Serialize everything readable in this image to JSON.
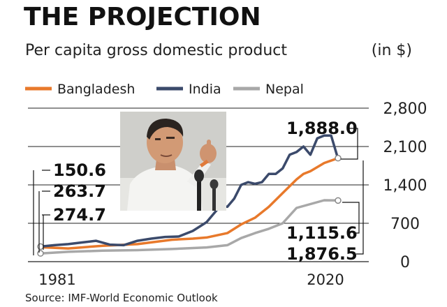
{
  "chart_data": {
    "type": "line",
    "title": "THE PROJECTION",
    "subtitle": "Per capita gross domestic product",
    "unit": "(in $)",
    "source": "Source: IMF-World Economic Outlook",
    "x_range": [
      1981,
      2024
    ],
    "x_ticks": [
      "1981",
      "2020"
    ],
    "y_ticks": [
      "2,800",
      "2,100",
      "1,400",
      "700",
      "0"
    ],
    "ylim": [
      0,
      2800
    ],
    "legend_position": "top-left",
    "series": [
      {
        "name": "Bangladesh",
        "color": "#e8792b",
        "x": [
          1981,
          1985,
          1990,
          1995,
          2000,
          2003,
          2005,
          2008,
          2010,
          2012,
          2014,
          2016,
          2018,
          2019,
          2020,
          2022,
          2024
        ],
        "values": [
          263.7,
          240,
          290,
          320,
          400,
          420,
          440,
          520,
          680,
          800,
          1000,
          1250,
          1500,
          1600,
          1650,
          1800,
          1888.0
        ]
      },
      {
        "name": "India",
        "color": "#3b4a6b",
        "x": [
          1981,
          1983,
          1985,
          1987,
          1989,
          1991,
          1993,
          1995,
          1997,
          1999,
          2001,
          2003,
          2005,
          2007,
          2008,
          2009,
          2010,
          2011,
          2012,
          2013,
          2014,
          2015,
          2016,
          2017,
          2018,
          2019,
          2020,
          2021,
          2022,
          2023,
          2024
        ],
        "values": [
          274.7,
          300,
          320,
          350,
          380,
          310,
          300,
          380,
          420,
          450,
          460,
          560,
          720,
          1020,
          1000,
          1150,
          1400,
          1450,
          1420,
          1450,
          1600,
          1600,
          1700,
          1950,
          2000,
          2100,
          1950,
          2250,
          2300,
          2300,
          1876.5
        ]
      },
      {
        "name": "Nepal",
        "color": "#a8a8a8",
        "x": [
          1981,
          1985,
          1990,
          1995,
          2000,
          2005,
          2008,
          2010,
          2012,
          2014,
          2016,
          2018,
          2020,
          2022,
          2024
        ],
        "values": [
          150.6,
          180,
          200,
          210,
          230,
          260,
          300,
          430,
          520,
          600,
          700,
          980,
          1050,
          1120,
          1115.6
        ]
      }
    ],
    "annotations": {
      "start": [
        "150.6",
        "263.7",
        "274.7"
      ],
      "end": [
        "1,888.0",
        "1,115.6",
        "1,876.5"
      ]
    }
  }
}
